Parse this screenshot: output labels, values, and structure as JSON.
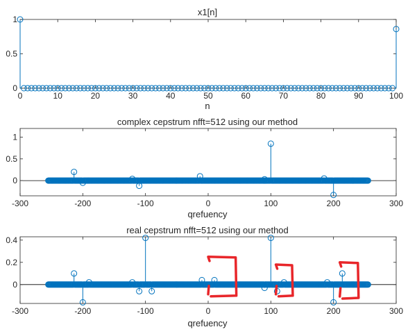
{
  "figure": {
    "background": "#ffffff",
    "stem_color": "#0072BD",
    "annotation_color": "#e8262a",
    "axes_color": "#262626"
  },
  "chart_data": [
    {
      "type": "stem",
      "title": "x1[n]",
      "xlabel": "n",
      "ylabel": "",
      "xlim": [
        0,
        100
      ],
      "ylim": [
        0,
        1
      ],
      "xticks": [
        0,
        10,
        20,
        30,
        40,
        50,
        60,
        70,
        80,
        90,
        100
      ],
      "xtick_labels": [
        "0",
        "10",
        "20",
        "30",
        "40",
        "50",
        "60",
        "70",
        "80",
        "90",
        "100"
      ],
      "yticks": [
        0,
        0.5,
        1
      ],
      "ytick_labels": [
        "0",
        "0.5",
        "1"
      ],
      "zero_line": false,
      "grid": false,
      "n_start": 0,
      "n_end": 100,
      "baseline_value": 0,
      "nonzero": [
        {
          "x": 0,
          "y": 1
        },
        {
          "x": 100,
          "y": 0.86
        }
      ]
    },
    {
      "type": "stem",
      "title": "complex cepstrum nfft=512 using our method",
      "xlabel": "qrefuency",
      "ylabel": "",
      "xlim": [
        -300,
        300
      ],
      "ylim": [
        -0.35,
        1.2
      ],
      "xticks": [
        -300,
        -200,
        -100,
        0,
        100,
        200,
        300
      ],
      "xtick_labels": [
        "-300",
        "-200",
        "-100",
        "0",
        "100",
        "200",
        "300"
      ],
      "yticks": [
        0,
        0.5,
        1
      ],
      "ytick_labels": [
        "0",
        "0.5",
        "1"
      ],
      "zero_line": true,
      "grid": false,
      "dense_range": [
        -255,
        255
      ],
      "baseline_value": 0,
      "nonzero": [
        {
          "x": -214,
          "y": 0.2
        },
        {
          "x": -200,
          "y": -0.05
        },
        {
          "x": -121,
          "y": 0.04
        },
        {
          "x": -110,
          "y": -0.12
        },
        {
          "x": -13,
          "y": 0.1
        },
        {
          "x": 90,
          "y": 0.03
        },
        {
          "x": 100,
          "y": 0.85
        },
        {
          "x": 185,
          "y": 0.05
        },
        {
          "x": 200,
          "y": -0.33
        }
      ]
    },
    {
      "type": "stem",
      "title": "real cepstrum nfft=512 using our method",
      "xlabel": "qrefuency",
      "ylabel": "",
      "xlim": [
        -300,
        300
      ],
      "ylim": [
        -0.17,
        0.43
      ],
      "xticks": [
        -300,
        -200,
        -100,
        0,
        100,
        200,
        300
      ],
      "xtick_labels": [
        "-300",
        "-200",
        "-100",
        "0",
        "100",
        "200",
        "300"
      ],
      "yticks": [
        0,
        0.2,
        0.4
      ],
      "ytick_labels": [
        "0",
        "0.2",
        "0.4"
      ],
      "zero_line": true,
      "grid": false,
      "dense_range": [
        -255,
        255
      ],
      "baseline_value": 0,
      "nonzero": [
        {
          "x": -214,
          "y": 0.1
        },
        {
          "x": -200,
          "y": -0.16
        },
        {
          "x": -190,
          "y": 0.02
        },
        {
          "x": -121,
          "y": 0.02
        },
        {
          "x": -110,
          "y": -0.06
        },
        {
          "x": -100,
          "y": 0.42
        },
        {
          "x": -90,
          "y": -0.06
        },
        {
          "x": -10,
          "y": 0.04
        },
        {
          "x": 10,
          "y": 0.04
        },
        {
          "x": 90,
          "y": -0.03
        },
        {
          "x": 100,
          "y": 0.42
        },
        {
          "x": 110,
          "y": -0.06
        },
        {
          "x": 121,
          "y": 0.02
        },
        {
          "x": 190,
          "y": 0.02
        },
        {
          "x": 200,
          "y": -0.16
        },
        {
          "x": 214,
          "y": 0.1
        }
      ]
    }
  ],
  "annotations": [
    {
      "kind": "hand-drawn-box",
      "panel": 2,
      "x_range": [
        0,
        45
      ],
      "y_range": [
        -0.1,
        0.25
      ]
    },
    {
      "kind": "hand-drawn-box",
      "panel": 2,
      "x_range": [
        108,
        135
      ],
      "y_range": [
        -0.1,
        0.18
      ]
    },
    {
      "kind": "hand-drawn-box",
      "panel": 2,
      "x_range": [
        210,
        240
      ],
      "y_range": [
        -0.12,
        0.2
      ]
    }
  ]
}
